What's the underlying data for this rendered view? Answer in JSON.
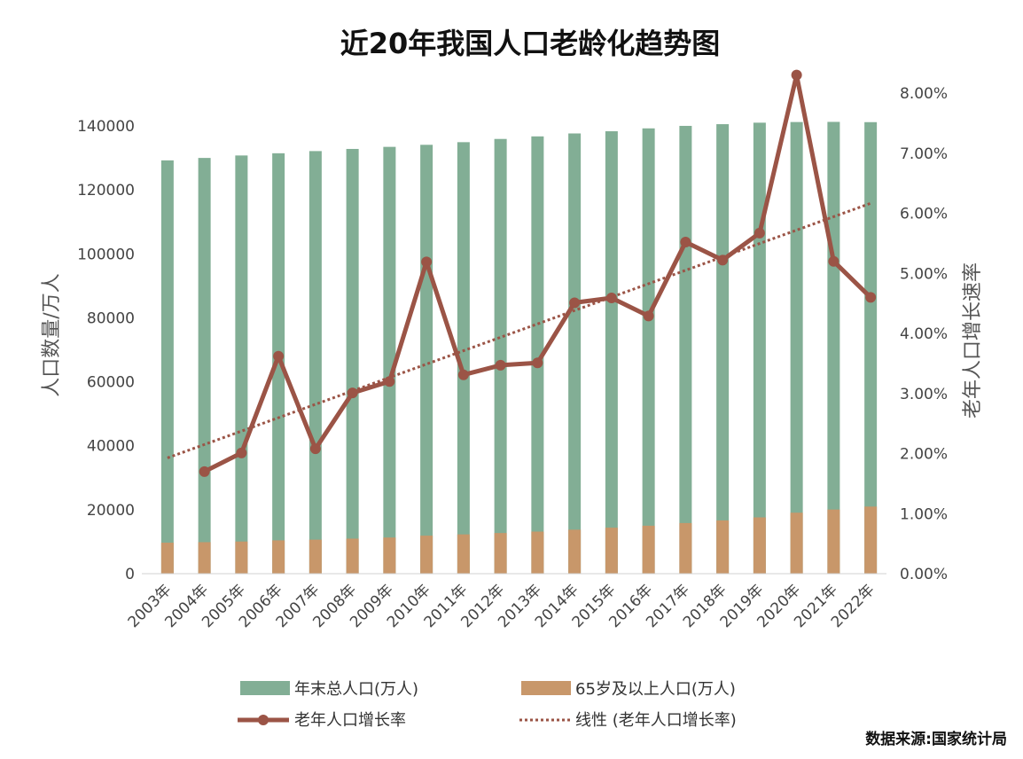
{
  "chart_data": {
    "type": "bar",
    "title": "近20年我国人口老龄化趋势图",
    "source": "数据来源:国家统计局",
    "categories": [
      "2003年",
      "2004年",
      "2005年",
      "2006年",
      "2007年",
      "2008年",
      "2009年",
      "2010年",
      "2011年",
      "2012年",
      "2013年",
      "2014年",
      "2015年",
      "2016年",
      "2017年",
      "2018年",
      "2019年",
      "2020年",
      "2021年",
      "2022年"
    ],
    "series": [
      {
        "name": "年末总人口(万人)",
        "type": "bar",
        "axis": "left",
        "color": "#82ae95",
        "values": [
          129227,
          129988,
          130756,
          131448,
          132129,
          132802,
          133450,
          134091,
          134916,
          135922,
          136726,
          137646,
          138326,
          139232,
          140011,
          140541,
          141008,
          141212,
          141260,
          141175
        ]
      },
      {
        "name": "65岁及以上人口(万人)",
        "type": "bar",
        "axis": "left",
        "color": "#c8976a",
        "values": [
          9692,
          9857,
          10055,
          10419,
          10636,
          10956,
          11307,
          11894,
          12288,
          12714,
          13161,
          13755,
          14386,
          15003,
          15831,
          16658,
          17603,
          19064,
          20056,
          20978
        ]
      },
      {
        "name": "老年人口增长率",
        "type": "line",
        "axis": "right",
        "color": "#9b5446",
        "values": [
          null,
          1.7,
          2.01,
          3.62,
          2.08,
          3.01,
          3.2,
          5.19,
          3.31,
          3.47,
          3.51,
          4.51,
          4.59,
          4.29,
          5.52,
          5.22,
          5.67,
          8.3,
          5.2,
          4.6
        ]
      },
      {
        "name": "线性 (老年人口增长率)",
        "type": "trendline",
        "axis": "right",
        "color": "#9b5446",
        "style": "dotted"
      }
    ],
    "y_left": {
      "label": "人口数量/万人",
      "ylim": [
        0,
        140000
      ],
      "ticks": [
        "0",
        "20000",
        "40000",
        "60000",
        "80000",
        "100000",
        "120000",
        "140000"
      ]
    },
    "y_right": {
      "label": "老年人口增长速率",
      "ylim": [
        0,
        8
      ],
      "ticks": [
        "0.00%",
        "1.00%",
        "2.00%",
        "3.00%",
        "4.00%",
        "5.00%",
        "6.00%",
        "7.00%",
        "8.00%"
      ]
    },
    "legend": {
      "position": "bottom"
    }
  }
}
